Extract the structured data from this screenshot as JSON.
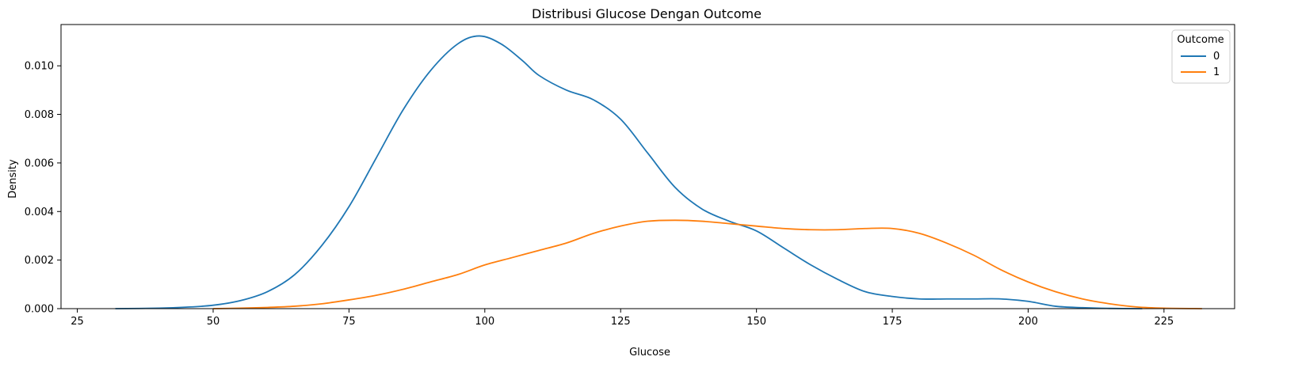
{
  "chart_data": {
    "type": "line",
    "title": "Distribusi Glucose Dengan Outcome",
    "xlabel": "Glucose",
    "ylabel": "Density",
    "xlim": [
      22,
      238
    ],
    "ylim": [
      0,
      0.0117
    ],
    "xticks": [
      25,
      50,
      75,
      100,
      125,
      150,
      175,
      200,
      225
    ],
    "yticks": [
      0.0,
      0.002,
      0.004,
      0.006,
      0.008,
      0.01
    ],
    "ytick_labels": [
      "0.000",
      "0.002",
      "0.004",
      "0.006",
      "0.008",
      "0.010"
    ],
    "grid": false,
    "legend": {
      "title": "Outcome",
      "placement": "top-right"
    },
    "series": [
      {
        "name": "0",
        "color": "#1f77b4",
        "x": [
          32,
          40,
          45,
          50,
          55,
          60,
          65,
          70,
          75,
          80,
          85,
          90,
          95,
          99,
          103,
          107,
          110,
          115,
          120,
          125,
          130,
          135,
          140,
          145,
          150,
          155,
          160,
          165,
          170,
          175,
          180,
          185,
          190,
          195,
          200,
          205,
          210,
          215,
          221
        ],
        "y": [
          0.0,
          2e-05,
          6e-05,
          0.00014,
          0.00033,
          0.0007,
          0.0014,
          0.0026,
          0.0042,
          0.0062,
          0.0082,
          0.0098,
          0.0109,
          0.01123,
          0.0109,
          0.0102,
          0.0096,
          0.009,
          0.0086,
          0.0078,
          0.0064,
          0.005,
          0.0041,
          0.0036,
          0.0032,
          0.0025,
          0.0018,
          0.0012,
          0.0007,
          0.0005,
          0.0004,
          0.0004,
          0.0004,
          0.0004,
          0.0003,
          0.0001,
          4e-05,
          1e-05,
          0.0
        ]
      },
      {
        "name": "1",
        "color": "#ff7f0e",
        "x": [
          50,
          55,
          60,
          65,
          70,
          75,
          80,
          85,
          90,
          95,
          100,
          105,
          110,
          115,
          120,
          125,
          130,
          135,
          140,
          145,
          150,
          155,
          160,
          165,
          170,
          175,
          180,
          185,
          190,
          195,
          200,
          205,
          210,
          215,
          220,
          225,
          232
        ],
        "y": [
          0.0,
          2e-05,
          5e-05,
          0.0001,
          0.0002,
          0.00036,
          0.00055,
          0.0008,
          0.0011,
          0.0014,
          0.0018,
          0.0021,
          0.0024,
          0.0027,
          0.0031,
          0.0034,
          0.0036,
          0.00364,
          0.0036,
          0.0035,
          0.0034,
          0.0033,
          0.00325,
          0.00325,
          0.0033,
          0.0033,
          0.0031,
          0.0027,
          0.0022,
          0.0016,
          0.0011,
          0.0007,
          0.0004,
          0.0002,
          7e-05,
          2e-05,
          0.0
        ]
      }
    ]
  }
}
